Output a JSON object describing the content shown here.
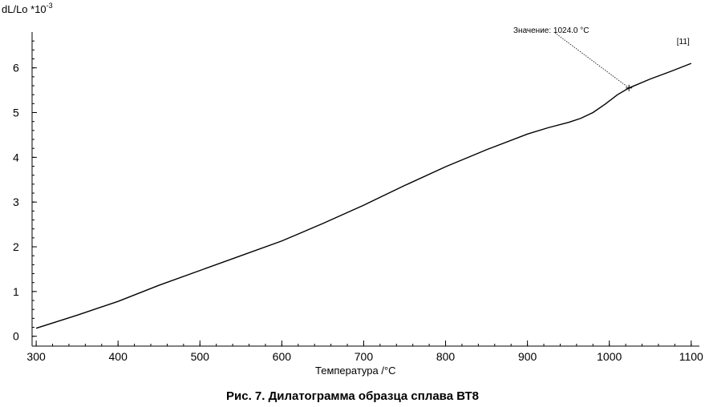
{
  "chart_data": {
    "type": "line",
    "ylabel_main": "dL/Lo *10",
    "ylabel_exp": "-3",
    "xlabel": "Температура /°C",
    "xlim": [
      295,
      1110
    ],
    "ylim": [
      -0.22,
      6.8
    ],
    "xticks": [
      300,
      400,
      500,
      600,
      700,
      800,
      900,
      1000,
      1100
    ],
    "yticks": [
      0,
      1,
      2,
      3,
      4,
      5,
      6
    ],
    "series": [
      {
        "x": [
          300,
          350,
          400,
          450,
          500,
          550,
          600,
          650,
          700,
          750,
          800,
          850,
          900,
          925,
          950,
          965,
          980,
          995,
          1010,
          1024,
          1050,
          1075,
          1100
        ],
        "y": [
          0.18,
          0.47,
          0.78,
          1.14,
          1.47,
          1.8,
          2.13,
          2.52,
          2.93,
          3.37,
          3.79,
          4.17,
          4.52,
          4.66,
          4.78,
          4.87,
          5.0,
          5.19,
          5.4,
          5.55,
          5.75,
          5.92,
          6.1
        ]
      }
    ],
    "annotation": {
      "text": "Значение: 1024.0 °C",
      "x": 1024,
      "y": 5.55
    },
    "end_label": "[11]",
    "grid": false
  },
  "caption": "Рис. 7. Дилатограмма образца сплава ВТ8"
}
